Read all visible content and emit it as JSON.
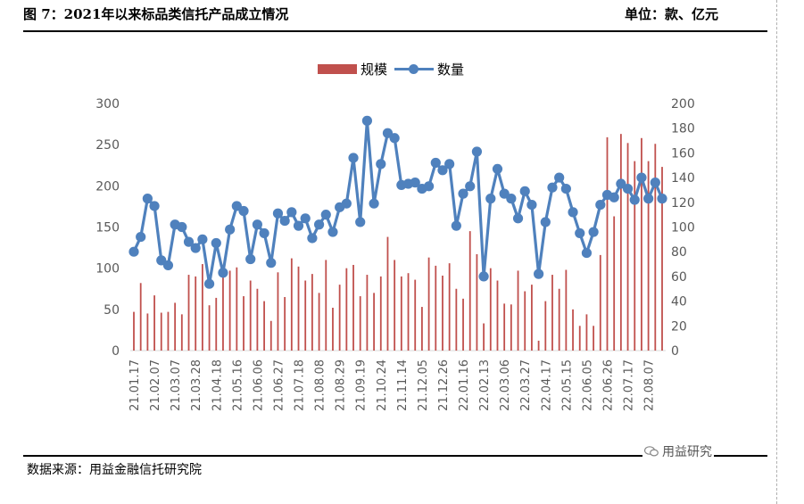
{
  "header": {
    "title": "图 7：2021年以来标品类信托产品成立情况",
    "unit": "单位：款、亿元"
  },
  "footer": {
    "source": "数据来源：用益金融信托研究院",
    "watermark": "用益研究"
  },
  "colors": {
    "bar": "#c0504d",
    "line": "#4f81bd",
    "axis": "#d9d9d9",
    "tick_text": "#595959"
  },
  "chart_data": {
    "type": "bar",
    "legend_position": "top",
    "grid": false,
    "legend": {
      "bar_series": "规模",
      "line_series": "数量"
    },
    "y_left": {
      "min": 0,
      "max": 300,
      "ticks": [
        "0",
        "50",
        "100",
        "150",
        "200",
        "250",
        "300"
      ]
    },
    "y_right": {
      "min": 0,
      "max": 200,
      "ticks": [
        "0",
        "20",
        "40",
        "60",
        "80",
        "100",
        "120",
        "140",
        "160",
        "180",
        "200"
      ]
    },
    "x_tick_labels": [
      "21.01.17",
      "21.02.07",
      "21.03.07",
      "21.03.28",
      "21.04.18",
      "21.05.16",
      "21.06.06",
      "21.06.27",
      "21.07.18",
      "21.08.08",
      "21.08.29",
      "21.09.19",
      "21.10.24",
      "21.11.14",
      "21.12.05",
      "21.12.26",
      "22.01.16",
      "22.02.13",
      "22.03.06",
      "22.03.27",
      "22.04.17",
      "22.05.15",
      "22.06.05",
      "22.06.26",
      "22.07.17",
      "22.08.07"
    ],
    "series": [
      {
        "name": "规模",
        "axis": "left",
        "type": "bar",
        "values": [
          47,
          82,
          45,
          67,
          46,
          47,
          58,
          44,
          92,
          90,
          105,
          55,
          64,
          104,
          97,
          101,
          66,
          85,
          75,
          60,
          36,
          95,
          65,
          112,
          102,
          85,
          93,
          70,
          110,
          52,
          80,
          100,
          104,
          66,
          92,
          70,
          90,
          138,
          110,
          90,
          94,
          86,
          53,
          113,
          103,
          91,
          106,
          75,
          63,
          145,
          117,
          33,
          100,
          85,
          57,
          56,
          97,
          72,
          80,
          12,
          60,
          92,
          75,
          98,
          50,
          30,
          44,
          30,
          116,
          259,
          163,
          263,
          252,
          230,
          258,
          230,
          251,
          223
        ]
      },
      {
        "name": "数量",
        "axis": "right",
        "type": "line",
        "values": [
          80,
          92,
          123,
          117,
          73,
          69,
          102,
          100,
          88,
          83,
          90,
          54,
          87,
          63,
          98,
          117,
          113,
          74,
          102,
          95,
          71,
          111,
          105,
          112,
          101,
          107,
          91,
          102,
          110,
          96,
          116,
          119,
          156,
          104,
          186,
          119,
          151,
          176,
          172,
          134,
          135,
          136,
          131,
          133,
          152,
          146,
          151,
          101,
          127,
          133,
          161,
          60,
          123,
          147,
          127,
          123,
          107,
          129,
          118,
          62,
          104,
          132,
          140,
          131,
          112,
          95,
          79,
          96,
          118,
          126,
          124,
          135,
          131,
          122,
          140,
          123,
          136,
          123
        ]
      }
    ]
  }
}
